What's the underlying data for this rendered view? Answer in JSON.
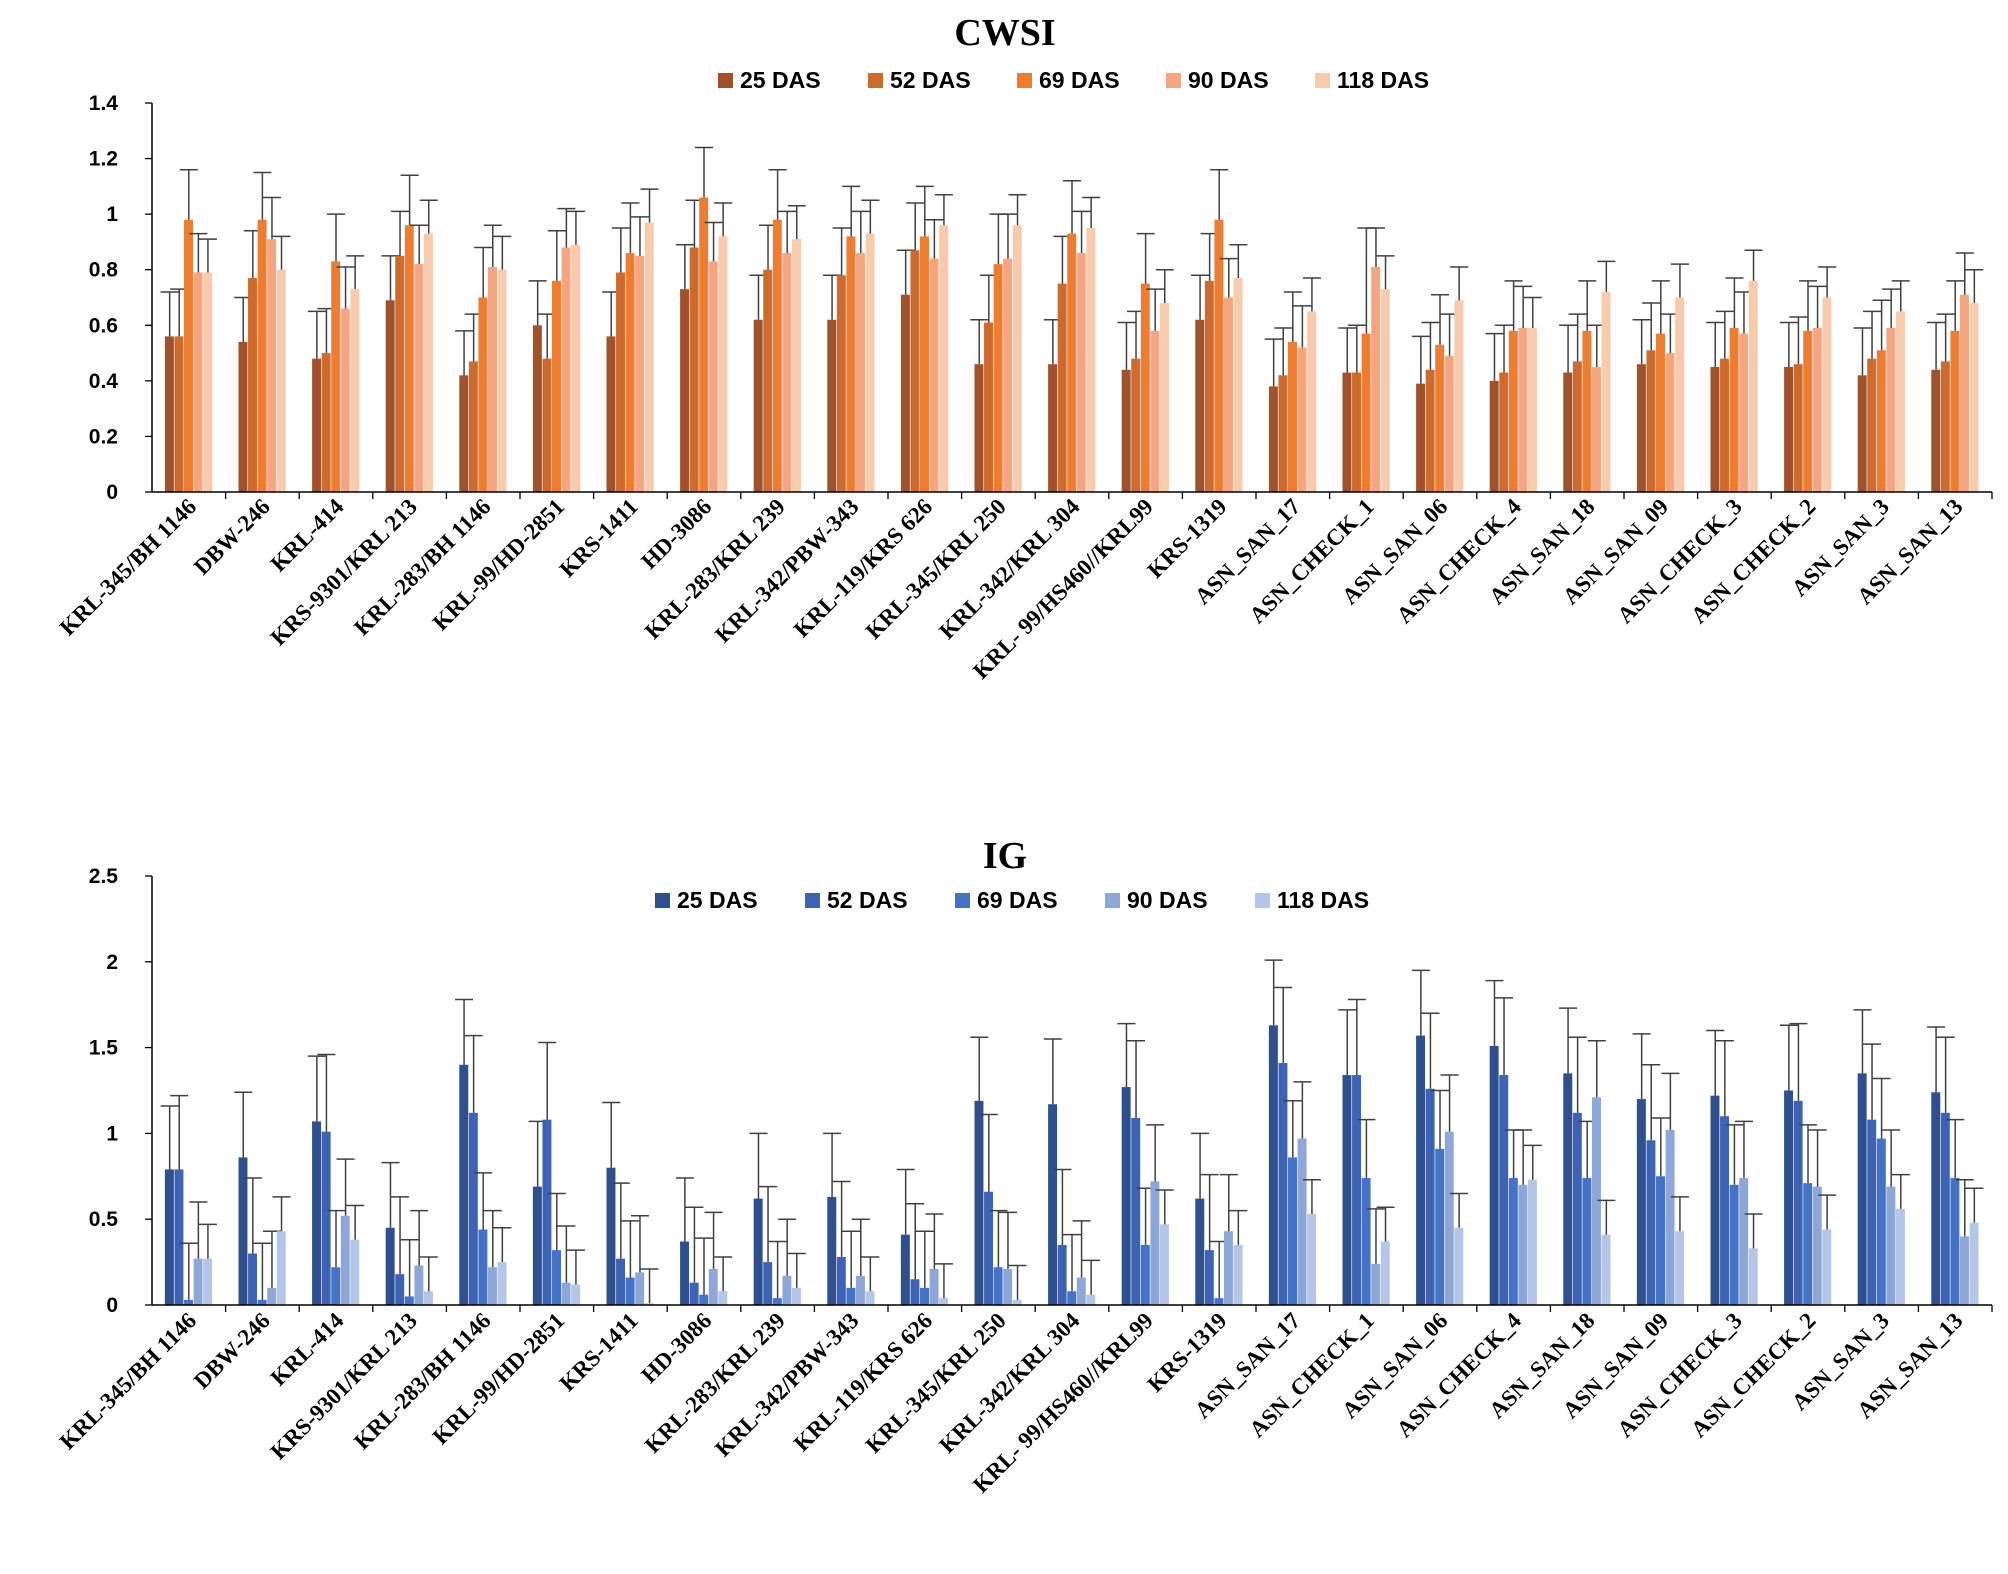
{
  "chart_data": [
    {
      "type": "bar",
      "title": "CWSI",
      "xlabel": "",
      "ylabel": "",
      "ylim": [
        0,
        1.4
      ],
      "yticks": [
        0,
        0.2,
        0.4,
        0.6,
        0.8,
        1,
        1.2,
        1.4
      ],
      "ytick_labels": [
        "0",
        "0.2",
        "0.4",
        "0.6",
        "0.8",
        "1",
        "1.2",
        "1.4"
      ],
      "grid": false,
      "legend_position": "top-center",
      "error_bars": "positive",
      "categories": [
        "KRL-345/BH 1146",
        "DBW-246",
        "KRL-414",
        "KRS-9301/KRL 213",
        "KRL-283/BH 1146",
        "KRL-99/HD-2851",
        "KRS-1411",
        "HD-3086",
        "KRL-283/KRL 239",
        "KRL-342/PBW-343",
        "KRL-119/KRS 626",
        "KRL-345/KRL 250",
        "KRL-342/KRL 304",
        "KRL- 99/HS460//KRL99",
        "KRS-1319",
        "ASN_SAN_17",
        "ASN_CHECK_1",
        "ASN_SAN_06",
        "ASN_CHECK_4",
        "ASN_SAN_18",
        "ASN_SAN_09",
        "ASN_CHECK_3",
        "ASN_CHECK_2",
        "ASN_SAN_3",
        "ASN_SAN_13"
      ],
      "series": [
        {
          "name": "25 DAS",
          "color": "#a0522d",
          "values": [
            0.56,
            0.54,
            0.48,
            0.69,
            0.42,
            0.6,
            0.56,
            0.73,
            0.62,
            0.62,
            0.71,
            0.46,
            0.46,
            0.44,
            0.62,
            0.38,
            0.43,
            0.39,
            0.4,
            0.43,
            0.46,
            0.45,
            0.45,
            0.42,
            0.44
          ],
          "errors": [
            0.16,
            0.16,
            0.17,
            0.16,
            0.16,
            0.16,
            0.16,
            0.16,
            0.16,
            0.16,
            0.16,
            0.16,
            0.16,
            0.17,
            0.16,
            0.17,
            0.16,
            0.17,
            0.17,
            0.17,
            0.16,
            0.16,
            0.16,
            0.17,
            0.17
          ]
        },
        {
          "name": "52 DAS",
          "color": "#cd6a2e",
          "values": [
            0.56,
            0.77,
            0.5,
            0.85,
            0.47,
            0.48,
            0.79,
            0.88,
            0.8,
            0.78,
            0.87,
            0.61,
            0.75,
            0.48,
            0.76,
            0.42,
            0.43,
            0.44,
            0.43,
            0.47,
            0.51,
            0.48,
            0.46,
            0.48,
            0.47
          ],
          "errors": [
            0.17,
            0.17,
            0.16,
            0.16,
            0.17,
            0.16,
            0.16,
            0.17,
            0.16,
            0.17,
            0.17,
            0.17,
            0.17,
            0.17,
            0.17,
            0.17,
            0.17,
            0.17,
            0.17,
            0.17,
            0.17,
            0.17,
            0.17,
            0.17,
            0.17
          ]
        },
        {
          "name": "69 DAS",
          "color": "#ed7d31",
          "values": [
            0.98,
            0.98,
            0.83,
            0.96,
            0.7,
            0.76,
            0.86,
            1.06,
            0.98,
            0.92,
            0.92,
            0.82,
            0.93,
            0.75,
            0.98,
            0.54,
            0.57,
            0.53,
            0.58,
            0.58,
            0.57,
            0.59,
            0.58,
            0.51,
            0.58
          ],
          "errors": [
            0.18,
            0.17,
            0.17,
            0.18,
            0.18,
            0.18,
            0.18,
            0.18,
            0.18,
            0.18,
            0.18,
            0.18,
            0.19,
            0.18,
            0.18,
            0.18,
            0.38,
            0.18,
            0.18,
            0.18,
            0.19,
            0.18,
            0.18,
            0.18,
            0.18
          ]
        },
        {
          "name": "90 DAS",
          "color": "#f4a582",
          "values": [
            0.79,
            0.91,
            0.66,
            0.82,
            0.81,
            0.88,
            0.85,
            0.83,
            0.86,
            0.86,
            0.84,
            0.84,
            0.86,
            0.58,
            0.7,
            0.52,
            0.81,
            0.49,
            0.59,
            0.45,
            0.5,
            0.57,
            0.59,
            0.59,
            0.71
          ],
          "errors": [
            0.14,
            0.15,
            0.15,
            0.14,
            0.15,
            0.14,
            0.14,
            0.14,
            0.15,
            0.15,
            0.14,
            0.16,
            0.15,
            0.15,
            0.14,
            0.15,
            0.14,
            0.15,
            0.15,
            0.15,
            0.14,
            0.15,
            0.15,
            0.14,
            0.15
          ]
        },
        {
          "name": "118 DAS",
          "color": "#f8cbad",
          "values": [
            0.79,
            0.8,
            0.73,
            0.93,
            0.8,
            0.89,
            0.97,
            0.92,
            0.91,
            0.93,
            0.96,
            0.96,
            0.95,
            0.68,
            0.77,
            0.65,
            0.73,
            0.69,
            0.59,
            0.72,
            0.7,
            0.76,
            0.7,
            0.65,
            0.68
          ],
          "errors": [
            0.12,
            0.12,
            0.12,
            0.12,
            0.12,
            0.12,
            0.12,
            0.12,
            0.12,
            0.12,
            0.11,
            0.11,
            0.11,
            0.12,
            0.12,
            0.12,
            0.12,
            0.12,
            0.11,
            0.11,
            0.12,
            0.11,
            0.11,
            0.11,
            0.12
          ]
        }
      ]
    },
    {
      "type": "bar",
      "title": "IG",
      "xlabel": "",
      "ylabel": "",
      "ylim": [
        0,
        2.5
      ],
      "yticks": [
        0,
        0.5,
        1,
        1.5,
        2,
        2.5
      ],
      "ytick_labels": [
        "0",
        "0.5",
        "1",
        "1.5",
        "2",
        "2.5"
      ],
      "grid": false,
      "legend_position": "top-center",
      "error_bars": "positive",
      "categories": [
        "KRL-345/BH 1146",
        "DBW-246",
        "KRL-414",
        "KRS-9301/KRL 213",
        "KRL-283/BH 1146",
        "KRL-99/HD-2851",
        "KRS-1411",
        "HD-3086",
        "KRL-283/KRL 239",
        "KRL-342/PBW-343",
        "KRL-119/KRS 626",
        "KRL-345/KRL 250",
        "KRL-342/KRL 304",
        "KRL- 99/HS460//KRL99",
        "KRS-1319",
        "ASN_SAN_17",
        "ASN_CHECK_1",
        "ASN_SAN_06",
        "ASN_CHECK_4",
        "ASN_SAN_18",
        "ASN_SAN_09",
        "ASN_CHECK_3",
        "ASN_CHECK_2",
        "ASN_SAN_3",
        "ASN_SAN_13"
      ],
      "series": [
        {
          "name": "25 DAS",
          "color": "#2f4f8f",
          "values": [
            0.79,
            0.86,
            1.07,
            0.45,
            1.4,
            0.69,
            0.8,
            0.37,
            0.62,
            0.63,
            0.41,
            1.19,
            1.17,
            1.27,
            0.62,
            1.63,
            1.34,
            1.57,
            1.51,
            1.35,
            1.2,
            1.22,
            1.25,
            1.35,
            1.24
          ],
          "errors": [
            0.37,
            0.38,
            0.38,
            0.38,
            0.38,
            0.38,
            0.38,
            0.37,
            0.38,
            0.37,
            0.38,
            0.37,
            0.38,
            0.37,
            0.38,
            0.38,
            0.38,
            0.38,
            0.38,
            0.38,
            0.38,
            0.38,
            0.38,
            0.37,
            0.38
          ]
        },
        {
          "name": "52 DAS",
          "color": "#3d64b4",
          "values": [
            0.79,
            0.3,
            1.01,
            0.18,
            1.12,
            1.08,
            0.27,
            0.13,
            0.25,
            0.28,
            0.15,
            0.66,
            0.35,
            1.09,
            0.32,
            1.41,
            1.34,
            1.26,
            1.34,
            1.12,
            0.96,
            1.1,
            1.19,
            1.08,
            1.12
          ],
          "errors": [
            0.43,
            0.44,
            0.45,
            0.45,
            0.45,
            0.45,
            0.44,
            0.44,
            0.44,
            0.44,
            0.44,
            0.45,
            0.44,
            0.45,
            0.44,
            0.44,
            0.44,
            0.44,
            0.45,
            0.44,
            0.44,
            0.44,
            0.45,
            0.44,
            0.44
          ]
        },
        {
          "name": "69 DAS",
          "color": "#4472c4",
          "values": [
            0.03,
            0.03,
            0.22,
            0.05,
            0.44,
            0.32,
            0.16,
            0.06,
            0.04,
            0.1,
            0.1,
            0.22,
            0.08,
            0.35,
            0.04,
            0.86,
            0.74,
            0.91,
            0.74,
            0.74,
            0.75,
            0.7,
            0.71,
            0.97,
            0.74
          ],
          "errors": [
            0.33,
            0.33,
            0.33,
            0.33,
            0.33,
            0.33,
            0.33,
            0.33,
            0.33,
            0.33,
            0.33,
            0.33,
            0.33,
            0.33,
            0.33,
            0.33,
            0.34,
            0.34,
            0.28,
            0.33,
            0.34,
            0.35,
            0.34,
            0.35,
            0.34
          ]
        },
        {
          "name": "90 DAS",
          "color": "#8ea7d9",
          "values": [
            0.27,
            0.1,
            0.52,
            0.23,
            0.22,
            0.13,
            0.19,
            0.21,
            0.17,
            0.17,
            0.21,
            0.21,
            0.16,
            0.72,
            0.43,
            0.97,
            0.24,
            1.01,
            0.7,
            1.21,
            1.02,
            0.74,
            0.69,
            0.69,
            0.4
          ],
          "errors": [
            0.33,
            0.33,
            0.33,
            0.32,
            0.33,
            0.33,
            0.33,
            0.33,
            0.33,
            0.33,
            0.32,
            0.33,
            0.33,
            0.33,
            0.33,
            0.33,
            0.32,
            0.33,
            0.32,
            0.33,
            0.33,
            0.33,
            0.33,
            0.33,
            0.33
          ]
        },
        {
          "name": "118 DAS",
          "color": "#b4c6e7",
          "values": [
            0.27,
            0.43,
            0.38,
            0.08,
            0.25,
            0.12,
            0.01,
            0.08,
            0.1,
            0.08,
            0.04,
            0.03,
            0.06,
            0.47,
            0.35,
            0.53,
            0.37,
            0.45,
            0.73,
            0.41,
            0.43,
            0.33,
            0.44,
            0.56,
            0.48
          ],
          "errors": [
            0.2,
            0.2,
            0.2,
            0.2,
            0.2,
            0.2,
            0.2,
            0.2,
            0.2,
            0.2,
            0.2,
            0.2,
            0.2,
            0.2,
            0.2,
            0.2,
            0.2,
            0.2,
            0.2,
            0.2,
            0.2,
            0.2,
            0.2,
            0.2,
            0.2
          ]
        }
      ]
    }
  ]
}
